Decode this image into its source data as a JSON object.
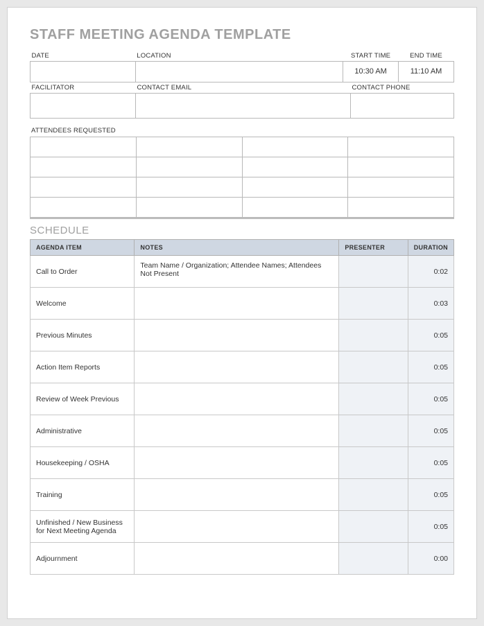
{
  "title": "STAFF MEETING AGENDA TEMPLATE",
  "meta": {
    "date_label": "DATE",
    "location_label": "LOCATION",
    "start_label": "START TIME",
    "end_label": "END TIME",
    "date_value": "",
    "location_value": "",
    "start_value": "10:30 AM",
    "end_value": "11:10 AM",
    "facilitator_label": "FACILITATOR",
    "contact_email_label": "CONTACT EMAIL",
    "contact_phone_label": "CONTACT PHONE",
    "facilitator_value": "",
    "contact_email_value": "",
    "contact_phone_value": ""
  },
  "attendees": {
    "label": "ATTENDEES REQUESTED",
    "rows": 4,
    "cols": 4
  },
  "schedule": {
    "title": "SCHEDULE",
    "columns": {
      "item": "AGENDA ITEM",
      "notes": "NOTES",
      "presenter": "PRESENTER",
      "duration": "DURATION"
    },
    "rows": [
      {
        "item": "Call to Order",
        "notes": "Team Name / Organization; Attendee Names; Attendees Not Present",
        "presenter": "",
        "duration": "0:02"
      },
      {
        "item": "Welcome",
        "notes": "",
        "presenter": "",
        "duration": "0:03"
      },
      {
        "item": "Previous Minutes",
        "notes": "",
        "presenter": "",
        "duration": "0:05"
      },
      {
        "item": "Action Item Reports",
        "notes": "",
        "presenter": "",
        "duration": "0:05"
      },
      {
        "item": "Review of Week Previous",
        "notes": "",
        "presenter": "",
        "duration": "0:05"
      },
      {
        "item": "Administrative",
        "notes": "",
        "presenter": "",
        "duration": "0:05"
      },
      {
        "item": "Housekeeping / OSHA",
        "notes": "",
        "presenter": "",
        "duration": "0:05"
      },
      {
        "item": "Training",
        "notes": "",
        "presenter": "",
        "duration": "0:05"
      },
      {
        "item": "Unfinished / New Business for Next Meeting Agenda",
        "notes": "",
        "presenter": "",
        "duration": "0:05"
      },
      {
        "item": "Adjournment",
        "notes": "",
        "presenter": "",
        "duration": "0:00"
      }
    ]
  },
  "styling": {
    "page_bg": "#ffffff",
    "body_bg": "#e8e8e8",
    "title_color": "#a0a0a0",
    "header_bg": "#cfd7e2",
    "shaded_bg": "#eff2f6",
    "border_color": "#b8b8b8",
    "font_family": "Century Gothic"
  }
}
